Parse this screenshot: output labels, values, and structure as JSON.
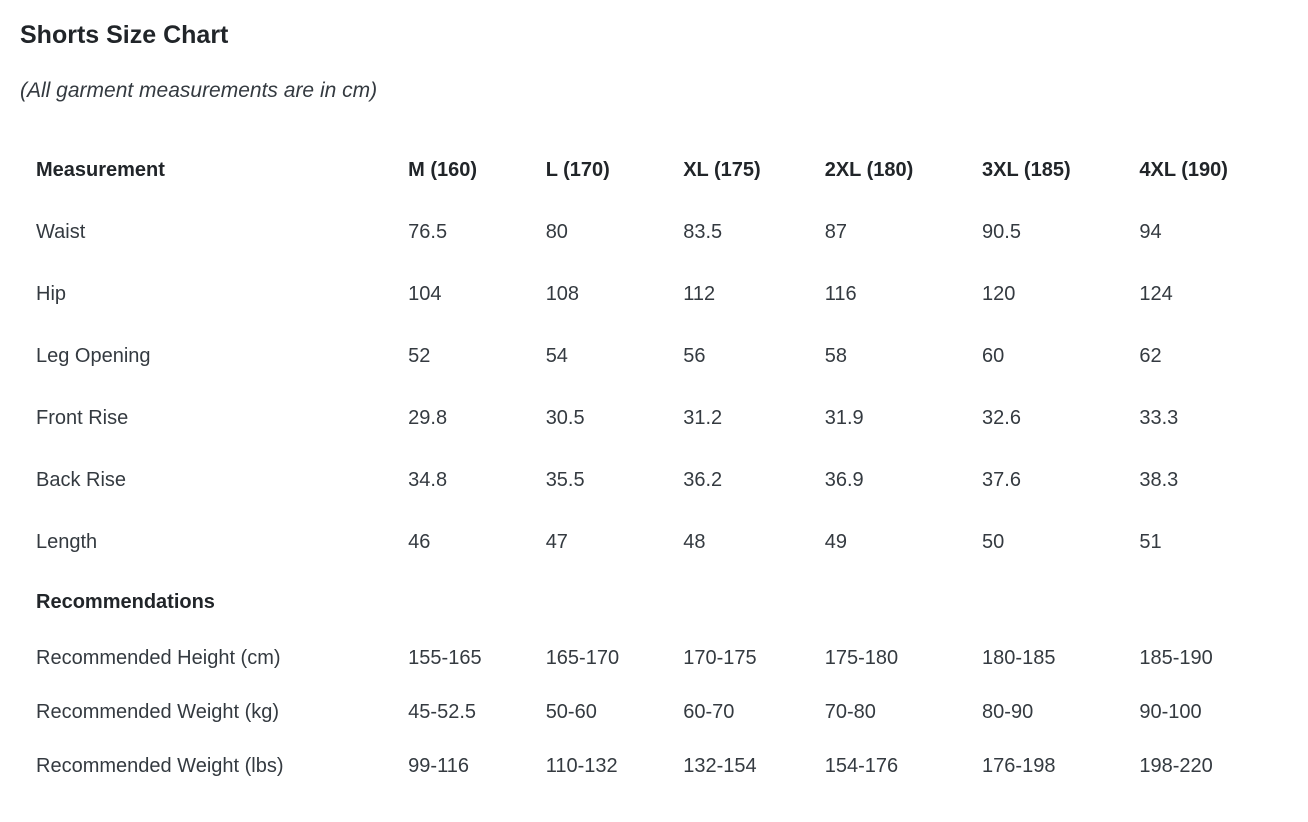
{
  "chart_data": {
    "type": "table",
    "title": "Shorts Size Chart",
    "subtitle": "(All garment measurements are in cm)",
    "units": "cm",
    "columns": [
      "Measurement",
      "M (160)",
      "L (170)",
      "XL (175)",
      "2XL (180)",
      "3XL (185)",
      "4XL (190)"
    ],
    "rows": [
      {
        "label": "Waist",
        "values": [
          "76.5",
          "80",
          "83.5",
          "87",
          "90.5",
          "94"
        ]
      },
      {
        "label": "Hip",
        "values": [
          "104",
          "108",
          "112",
          "116",
          "120",
          "124"
        ]
      },
      {
        "label": "Leg Opening",
        "values": [
          "52",
          "54",
          "56",
          "58",
          "60",
          "62"
        ]
      },
      {
        "label": "Front Rise",
        "values": [
          "29.8",
          "30.5",
          "31.2",
          "31.9",
          "32.6",
          "33.3"
        ]
      },
      {
        "label": "Back Rise",
        "values": [
          "34.8",
          "35.5",
          "36.2",
          "36.9",
          "37.6",
          "38.3"
        ]
      },
      {
        "label": "Length",
        "values": [
          "46",
          "47",
          "48",
          "49",
          "50",
          "51"
        ]
      }
    ],
    "section_label": "Recommendations",
    "recommendation_rows": [
      {
        "label": "Recommended Height (cm)",
        "values": [
          "155-165",
          "165-170",
          "170-175",
          "175-180",
          "180-185",
          "185-190"
        ]
      },
      {
        "label": "Recommended Weight (kg)",
        "values": [
          "45-52.5",
          "50-60",
          "60-70",
          "70-80",
          "80-90",
          "90-100"
        ]
      },
      {
        "label": "Recommended Weight (lbs)",
        "values": [
          "99-116",
          "110-132",
          "132-154",
          "154-176",
          "176-198",
          "198-220"
        ]
      }
    ],
    "colors": {
      "background": "#ffffff",
      "heading_text": "#212529",
      "body_text": "#343a40"
    },
    "layout": {
      "grid": "off",
      "borders": "none",
      "alignment": "left"
    }
  }
}
